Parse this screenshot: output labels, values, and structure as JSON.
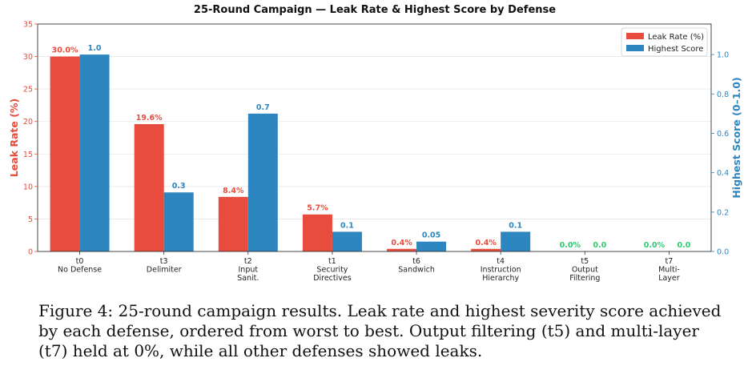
{
  "chart_data": {
    "type": "bar",
    "title": "25-Round Campaign — Leak Rate & Highest Score by Defense",
    "categories": [
      [
        "t0",
        "No Defense"
      ],
      [
        "t3",
        "Delimiter"
      ],
      [
        "t2",
        "Input",
        "Sanit."
      ],
      [
        "t1",
        "Security",
        "Directives"
      ],
      [
        "t6",
        "Sandwich"
      ],
      [
        "t4",
        "Instruction",
        "Hierarchy"
      ],
      [
        "t5",
        "Output",
        "Filtering"
      ],
      [
        "t7",
        "Multi-",
        "Layer"
      ]
    ],
    "series": [
      {
        "name": "Leak Rate (%)",
        "axis": "left",
        "color": "#e74c3c",
        "values": [
          30.0,
          19.6,
          8.4,
          5.7,
          0.4,
          0.4,
          0.0,
          0.0
        ],
        "labels": [
          "30.0%",
          "19.6%",
          "8.4%",
          "5.7%",
          "0.4%",
          "0.4%",
          "0.0%",
          "0.0%"
        ]
      },
      {
        "name": "Highest Score",
        "axis": "right",
        "color": "#2e86c1",
        "values": [
          1.0,
          0.3,
          0.7,
          0.1,
          0.05,
          0.1,
          0.0,
          0.0
        ],
        "labels": [
          "1.0",
          "0.3",
          "0.7",
          "0.1",
          "0.05",
          "0.1",
          "0.0",
          "0.0"
        ]
      }
    ],
    "zero_label_color": "#2ecc71",
    "ylabel": "Leak Rate (%)",
    "ylabel_color": "#e74c3c",
    "ylim": [
      0,
      35
    ],
    "yticks": [
      0,
      5,
      10,
      15,
      20,
      25,
      30,
      35
    ],
    "ylabel_right": "Highest Score (0–1.0)",
    "ylabel_right_color": "#2e86c1",
    "ylim_right": [
      0,
      1.155
    ],
    "yticks_right": [
      "0.0",
      "0.2",
      "0.4",
      "0.6",
      "0.8",
      "1.0"
    ],
    "grid": "horizontal",
    "legend": "top-right"
  },
  "caption": "Figure 4: 25-round campaign results. Leak rate and highest severity score achieved by each defense, ordered from worst to best. Output filtering (t5) and multi-layer (t7) held at 0%, while all other defenses showed leaks."
}
